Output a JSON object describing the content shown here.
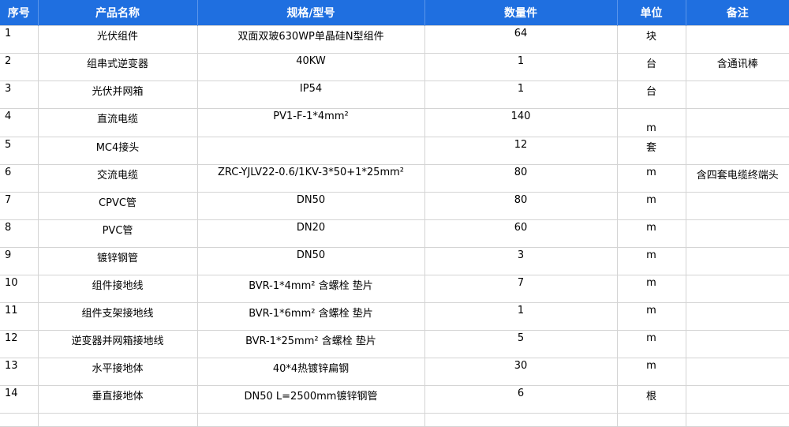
{
  "columns": [
    "序号",
    "产品名称",
    "规格/型号",
    "数量件",
    "单位",
    "备注"
  ],
  "rows": [
    {
      "seq": "1",
      "name": "光伏组件",
      "spec": "双面双玻630WP单晶硅N型组件",
      "qty": "64",
      "unit": "块",
      "note": ""
    },
    {
      "seq": "2",
      "name": "组串式逆变器",
      "spec": "40KW",
      "qty": "1",
      "unit": "台",
      "note": "含通讯棒"
    },
    {
      "seq": "3",
      "name": "光伏并网箱",
      "spec": "IP54",
      "qty": "1",
      "unit": "台",
      "note": ""
    },
    {
      "seq": "4",
      "name": "直流电缆",
      "spec": "PV1-F-1*4mm²",
      "qty": "140",
      "unit": "m",
      "note": ""
    },
    {
      "seq": "5",
      "name": "MC4接头",
      "spec": "",
      "qty": "12",
      "unit": "套",
      "note": ""
    },
    {
      "seq": "6",
      "name": "交流电缆",
      "spec": "ZRC-YJLV22-0.6/1KV-3*50+1*25mm²",
      "qty": "80",
      "unit": "m",
      "note": "含四套电缆终端头"
    },
    {
      "seq": "7",
      "name": "CPVC管",
      "spec": "DN50",
      "qty": "80",
      "unit": "m",
      "note": ""
    },
    {
      "seq": "8",
      "name": "PVC管",
      "spec": "DN20",
      "qty": "60",
      "unit": "m",
      "note": ""
    },
    {
      "seq": "9",
      "name": "镀锌钢管",
      "spec": "DN50",
      "qty": "3",
      "unit": "m",
      "note": ""
    },
    {
      "seq": "10",
      "name": "组件接地线",
      "spec": "BVR-1*4mm² 含螺栓 垫片",
      "qty": "7",
      "unit": "m",
      "note": ""
    },
    {
      "seq": "11",
      "name": "组件支架接地线",
      "spec": "BVR-1*6mm² 含螺栓 垫片",
      "qty": "1",
      "unit": "m",
      "note": ""
    },
    {
      "seq": "12",
      "name": "逆变器并网箱接地线",
      "spec": "BVR-1*25mm² 含螺栓 垫片",
      "qty": "5",
      "unit": "m",
      "note": ""
    },
    {
      "seq": "13",
      "name": "水平接地体",
      "spec": "40*4热镀锌扁钢",
      "qty": "30",
      "unit": "m",
      "note": ""
    },
    {
      "seq": "14",
      "name": "垂直接地体",
      "spec": "DN50 L=2500mm镀锌钢管",
      "qty": "6",
      "unit": "根",
      "note": ""
    }
  ]
}
